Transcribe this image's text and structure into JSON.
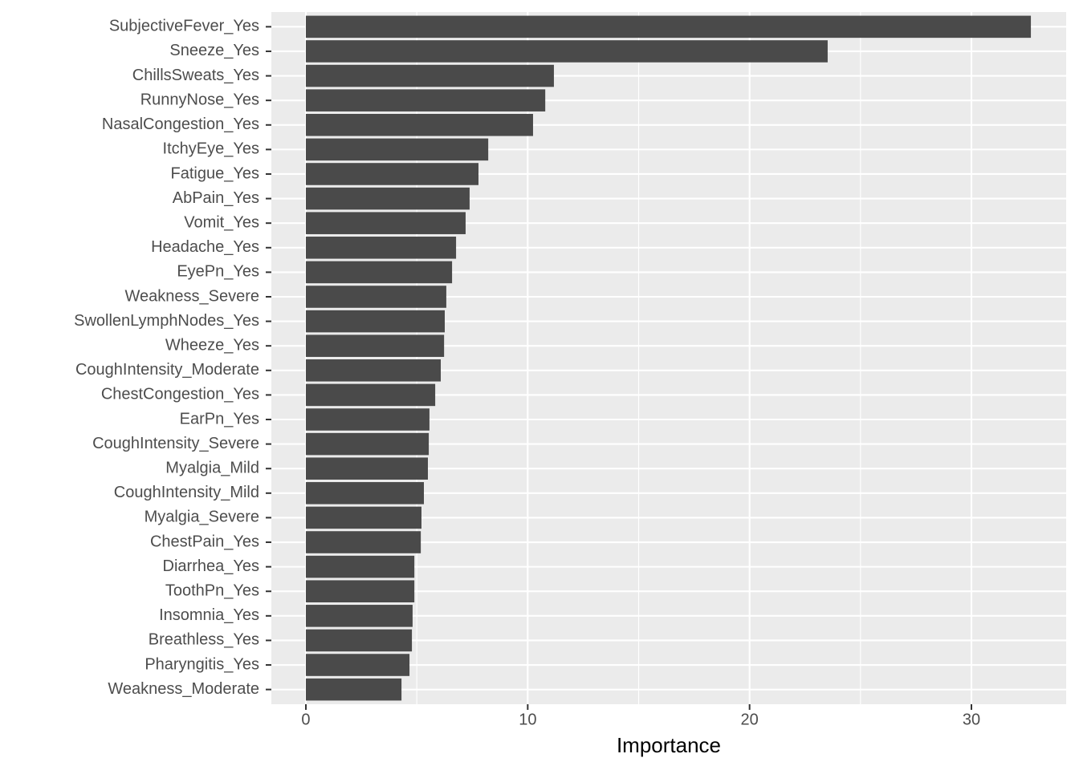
{
  "chart_data": {
    "type": "hbar",
    "x_label": "Importance",
    "categories": [
      "SubjectiveFever_Yes",
      "Sneeze_Yes",
      "ChillsSweats_Yes",
      "RunnyNose_Yes",
      "NasalCongestion_Yes",
      "ItchyEye_Yes",
      "Fatigue_Yes",
      "AbPain_Yes",
      "Vomit_Yes",
      "Headache_Yes",
      "EyePn_Yes",
      "Weakness_Severe",
      "SwollenLymphNodes_Yes",
      "Wheeze_Yes",
      "CoughIntensity_Moderate",
      "ChestCongestion_Yes",
      "EarPn_Yes",
      "CoughIntensity_Severe",
      "Myalgia_Mild",
      "CoughIntensity_Mild",
      "Myalgia_Severe",
      "ChestPain_Yes",
      "Diarrhea_Yes",
      "ToothPn_Yes",
      "Insomnia_Yes",
      "Breathless_Yes",
      "Pharyngitis_Yes",
      "Weakness_Moderate"
    ],
    "values": [
      32.68,
      23.52,
      11.18,
      10.79,
      10.24,
      8.22,
      7.78,
      7.38,
      7.2,
      6.77,
      6.59,
      6.33,
      6.26,
      6.23,
      6.08,
      5.83,
      5.57,
      5.54,
      5.5,
      5.32,
      5.21,
      5.18,
      4.89,
      4.89,
      4.81,
      4.78,
      4.67,
      4.31
    ],
    "color": "#4a4a4a",
    "xlim": [
      -1.556,
      34.27
    ],
    "xticks": [
      0,
      10,
      20,
      30
    ],
    "x_minor_grid": [
      5,
      15,
      25
    ],
    "grid": true
  }
}
